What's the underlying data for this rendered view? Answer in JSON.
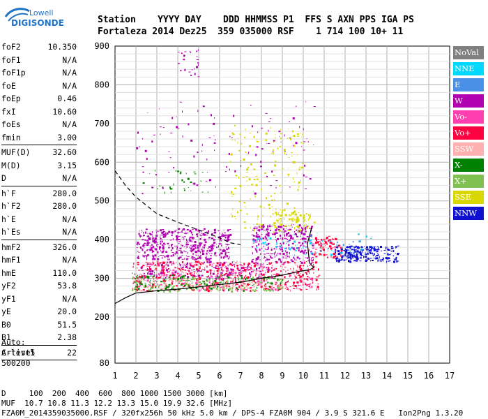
{
  "logo": {
    "line1": "Lowell",
    "line2": "DIGISONDE",
    "accent": "#1f74c8"
  },
  "header": {
    "row1": "Station    YYYY DAY    DDD HHMMSS P1  FFS S AXN PPS IGA PS",
    "row2": "Fortaleza 2014 Dez25  359 035000 RSF    1 714 100 10+ 11"
  },
  "params": [
    [
      {
        "k": "foF2",
        "v": "10.350"
      },
      {
        "k": "foF1",
        "v": "N/A"
      },
      {
        "k": "foF1p",
        "v": "N/A"
      },
      {
        "k": "foE",
        "v": "N/A"
      },
      {
        "k": "foEp",
        "v": "0.46"
      },
      {
        "k": "fxI",
        "v": "10.60"
      },
      {
        "k": "foEs",
        "v": "N/A"
      },
      {
        "k": "fmin",
        "v": "3.00"
      }
    ],
    [
      {
        "k": "MUF(D)",
        "v": "32.60"
      },
      {
        "k": "M(D)",
        "v": "3.15"
      },
      {
        "k": "D",
        "v": "N/A"
      }
    ],
    [
      {
        "k": "h`F",
        "v": "280.0"
      },
      {
        "k": "h`F2",
        "v": "280.0"
      },
      {
        "k": "h`E",
        "v": "N/A"
      },
      {
        "k": "h`Es",
        "v": "N/A"
      }
    ],
    [
      {
        "k": "hmF2",
        "v": "326.0"
      },
      {
        "k": "hmF1",
        "v": "N/A"
      },
      {
        "k": "hmE",
        "v": "110.0"
      },
      {
        "k": "yF2",
        "v": "53.8"
      },
      {
        "k": "yF1",
        "v": "N/A"
      },
      {
        "k": "yE",
        "v": "20.0"
      },
      {
        "k": "B0",
        "v": "51.5"
      },
      {
        "k": "B1",
        "v": "2.38"
      }
    ],
    [
      {
        "k": "C-level",
        "v": "22"
      }
    ]
  ],
  "auto": {
    "l1": "Auto:",
    "l2": "Artist5",
    "l3": "500200"
  },
  "legend": [
    {
      "label": "NoVal",
      "color": "#808080"
    },
    {
      "label": "NNE",
      "color": "#00d8ff"
    },
    {
      "label": "E",
      "color": "#4a90e8"
    },
    {
      "label": "W",
      "color": "#b000b0"
    },
    {
      "label": "Vo-",
      "color": "#ff3fb0"
    },
    {
      "label": "Vo+",
      "color": "#ff0040"
    },
    {
      "label": "SSW",
      "color": "#ffb0b0"
    },
    {
      "label": "X-",
      "color": "#008000"
    },
    {
      "label": "X+",
      "color": "#80c050"
    },
    {
      "label": "SSE",
      "color": "#d8d800"
    },
    {
      "label": "NNW",
      "color": "#1010d0"
    }
  ],
  "footer": {
    "l1": "D     100  200  400  600  800 1000 1500 3000 [km]",
    "l2": "MUF  10.7 10.8 11.3 12.2 13.3 15.0 19.9 32.6 [MHz]",
    "l3": "FZA0M_2014359035000.RSF / 320fx256h 50 kHz 5.0 km / DPS-4 FZA0M 904 / 3.9 S 321.6 E   Ion2Png 1.3.20"
  },
  "chart_data": {
    "type": "scatter",
    "xlim": [
      1,
      17
    ],
    "ylim": [
      80,
      900
    ],
    "x_ticks": [
      "1",
      "2",
      "3",
      "4",
      "5",
      "6",
      "7",
      "8",
      "9",
      "10",
      "11",
      "12",
      "13",
      "14",
      "15",
      "16",
      "17"
    ],
    "y_ticks": [
      "80",
      "200",
      "300",
      "400",
      "500",
      "600",
      "700",
      "800",
      "900"
    ],
    "y_tick_values": [
      80,
      200,
      300,
      400,
      500,
      600,
      700,
      800,
      900
    ],
    "trace_curve": [
      [
        1.0,
        235
      ],
      [
        1.5,
        250
      ],
      [
        2,
        262
      ],
      [
        3,
        268
      ],
      [
        4,
        272
      ],
      [
        5,
        278
      ],
      [
        6,
        284
      ],
      [
        7,
        290
      ],
      [
        8,
        300
      ],
      [
        9,
        308
      ],
      [
        9.8,
        318
      ],
      [
        10.3,
        322
      ],
      [
        10.5,
        328
      ],
      [
        10.3,
        340
      ],
      [
        10.2,
        390
      ],
      [
        10.4,
        430
      ]
    ],
    "profile_curve": [
      [
        1.0,
        578
      ],
      [
        1.5,
        540
      ],
      [
        2,
        510
      ],
      [
        3,
        467
      ],
      [
        4,
        445
      ],
      [
        5,
        425
      ],
      [
        6,
        405
      ],
      [
        6.5,
        392
      ],
      [
        7,
        387
      ]
    ],
    "clusters": [
      {
        "series": "W",
        "x": [
          2.0,
          6.5
        ],
        "y": [
          350,
          430
        ],
        "n": 500
      },
      {
        "series": "W",
        "x": [
          7.5,
          10.5
        ],
        "y": [
          340,
          440
        ],
        "n": 320
      },
      {
        "series": "W",
        "x": [
          2.2,
          8.5
        ],
        "y": [
          300,
          345
        ],
        "n": 220
      },
      {
        "series": "W",
        "x": [
          2,
          10.5
        ],
        "y": [
          520,
          760
        ],
        "n": 120
      },
      {
        "series": "Vo+",
        "x": [
          1.8,
          10.8
        ],
        "y": [
          270,
          345
        ],
        "n": 520
      },
      {
        "series": "Vo-",
        "x": [
          2,
          10.5
        ],
        "y": [
          270,
          340
        ],
        "n": 160
      },
      {
        "series": "SSW",
        "x": [
          2,
          9
        ],
        "y": [
          270,
          300
        ],
        "n": 120
      },
      {
        "series": "X-",
        "x": [
          1.8,
          9
        ],
        "y": [
          270,
          310
        ],
        "n": 160
      },
      {
        "series": "X+",
        "x": [
          1.8,
          9
        ],
        "y": [
          268,
          305
        ],
        "n": 120
      },
      {
        "series": "SSE",
        "x": [
          6.5,
          10
        ],
        "y": [
          420,
          700
        ],
        "n": 180
      },
      {
        "series": "SSE",
        "x": [
          8.5,
          10.5
        ],
        "y": [
          430,
          480
        ],
        "n": 90
      },
      {
        "series": "NNW",
        "x": [
          11.5,
          14.5
        ],
        "y": [
          345,
          385
        ],
        "n": 260
      },
      {
        "series": "NNE",
        "x": [
          7.5,
          13.5
        ],
        "y": [
          360,
          420
        ],
        "n": 50
      },
      {
        "series": "E",
        "x": [
          8,
          13
        ],
        "y": [
          360,
          400
        ],
        "n": 40
      },
      {
        "series": "Vo+",
        "x": [
          10.5,
          11.8
        ],
        "y": [
          355,
          410
        ],
        "n": 90
      },
      {
        "series": "X-",
        "x": [
          2.2,
          5.5
        ],
        "y": [
          520,
          580
        ],
        "n": 30
      },
      {
        "series": "W",
        "x": [
          4,
          5
        ],
        "y": [
          820,
          895
        ],
        "n": 25
      }
    ]
  }
}
